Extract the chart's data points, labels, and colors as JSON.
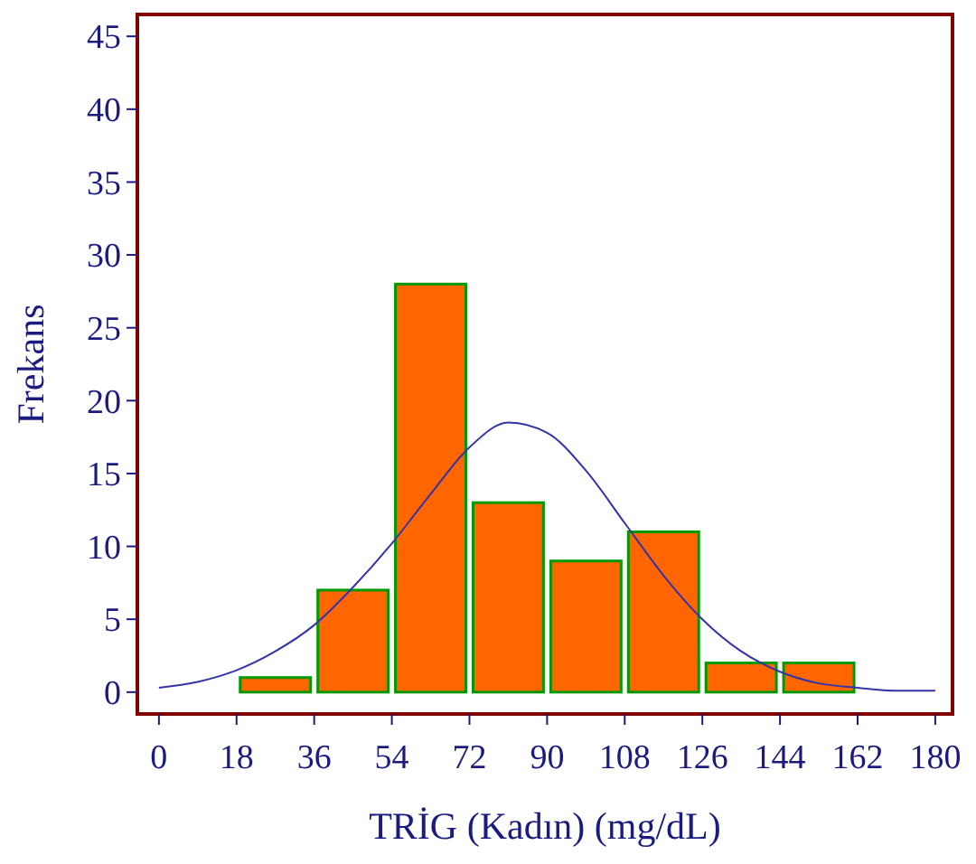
{
  "chart_data": {
    "type": "histogram",
    "xlabel": "TRİG (Kadın)  (mg/dL)",
    "ylabel": "Frekans",
    "bins": [
      18,
      36,
      54,
      72,
      90,
      108,
      126,
      144,
      162
    ],
    "series": [
      {
        "color": "#ff6600",
        "values": [
          1,
          7,
          28,
          13,
          9,
          11,
          2,
          2
        ]
      },
      {
        "type": "line",
        "color": "#3333aa",
        "x": [
          0,
          9,
          18,
          27,
          36,
          45,
          54,
          63,
          72,
          81,
          90,
          99,
          108,
          117,
          126,
          135,
          144,
          153,
          162,
          171,
          180
        ],
        "values": [
          0.3,
          0.7,
          1.5,
          2.8,
          4.6,
          7.2,
          10.2,
          13.6,
          16.8,
          18.5,
          17.8,
          15.2,
          11.6,
          8,
          5,
          2.8,
          1.4,
          0.6,
          0.3,
          0.1,
          0.1
        ]
      }
    ],
    "xlim": [
      -5,
      184
    ],
    "xticks": [
      0,
      18,
      36,
      54,
      72,
      90,
      108,
      126,
      144,
      162,
      180
    ],
    "ylim": [
      -1.5,
      46.5
    ],
    "yticks": [
      0,
      5,
      10,
      15,
      20,
      25,
      30,
      35,
      40,
      45
    ],
    "grid": false
  }
}
